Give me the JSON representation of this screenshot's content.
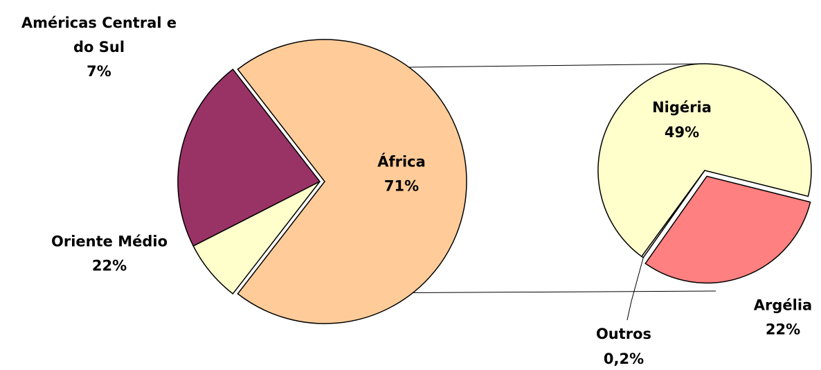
{
  "chart_data": [
    {
      "type": "pie",
      "categories": [
        "África",
        "Oriente Médio",
        "Américas Central e do Sul"
      ],
      "values": [
        71,
        22,
        7
      ],
      "labels": [
        {
          "lines": [
            "África",
            "71%"
          ]
        },
        {
          "lines": [
            "Oriente Médio",
            "22%"
          ]
        },
        {
          "lines": [
            "Américas Central e",
            "do Sul",
            "7%"
          ]
        }
      ],
      "colors": [
        "#FFCC99",
        "#993366",
        "#FFFFCC"
      ],
      "exploded": "África"
    },
    {
      "type": "pie",
      "categories": [
        "Nigéria",
        "Argélia",
        "Outros"
      ],
      "values": [
        49,
        22,
        0.2
      ],
      "labels": [
        {
          "lines": [
            "Nigéria",
            "49%"
          ]
        },
        {
          "lines": [
            "Argélia",
            "22%"
          ]
        },
        {
          "lines": [
            "Outros",
            "0,2%"
          ]
        }
      ],
      "colors": [
        "#FFFFCC",
        "#FF8080",
        "#FFFFFF"
      ],
      "exploded": "Argélia"
    }
  ]
}
